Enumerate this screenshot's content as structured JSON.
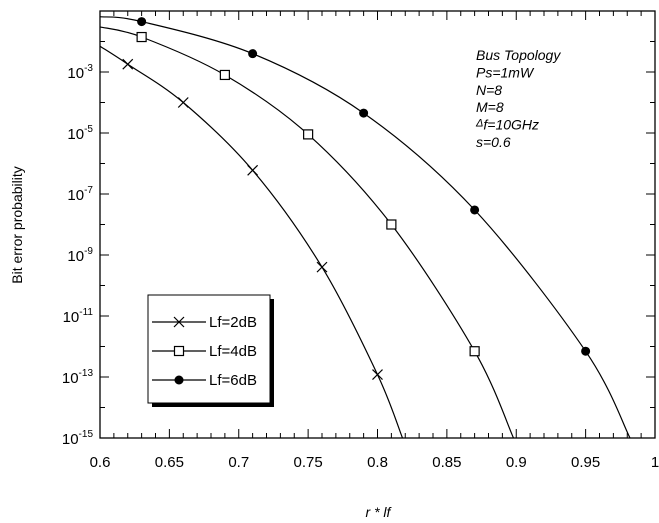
{
  "chart_data": {
    "type": "line",
    "title": "",
    "xlabel": "r * lf",
    "ylabel": "Bit error probability",
    "x_scale": "linear",
    "y_scale": "log",
    "xlim": [
      0.6,
      1.0
    ],
    "ylim": [
      1e-15,
      0.1
    ],
    "x_ticks": [
      "0.6",
      "0.65",
      "0.7",
      "0.75",
      "0.8",
      "0.85",
      "0.9",
      "0.95",
      "1"
    ],
    "y_ticks": [
      {
        "base": "10",
        "exp": "-3",
        "value": 0.001
      },
      {
        "base": "10",
        "exp": "-5",
        "value": 1e-05
      },
      {
        "base": "10",
        "exp": "-7",
        "value": 1e-07
      },
      {
        "base": "10",
        "exp": "-9",
        "value": 1e-09
      },
      {
        "base": "10",
        "exp": "-11",
        "value": 1e-11
      },
      {
        "base": "10",
        "exp": "-13",
        "value": 1e-13
      },
      {
        "base": "10",
        "exp": "-15",
        "value": 1e-15
      }
    ],
    "grid": false,
    "legend_position": "bottom-left",
    "annotation": {
      "lines": [
        {
          "prefix": "",
          "text": "Bus Topology"
        },
        {
          "prefix": "",
          "text": "Ps=1mW"
        },
        {
          "prefix": "",
          "text": "N=8"
        },
        {
          "prefix": "",
          "text": "M=8"
        },
        {
          "prefix": "Δ",
          "text": "f=10GHz"
        },
        {
          "prefix": "",
          "text": "s=0.6"
        }
      ]
    },
    "series": [
      {
        "name": "Lf=2dB",
        "marker": "x",
        "curve": [
          [
            0.6,
            0.007
          ],
          [
            0.62,
            0.0018
          ],
          [
            0.66,
            0.0001
          ],
          [
            0.71,
            6e-07
          ],
          [
            0.76,
            4e-10
          ],
          [
            0.8,
            1.2e-13
          ],
          [
            0.818,
            1e-15
          ]
        ],
        "marker_points": [
          [
            0.62,
            0.0018
          ],
          [
            0.66,
            0.0001
          ],
          [
            0.71,
            6e-07
          ],
          [
            0.76,
            4e-10
          ],
          [
            0.8,
            1.2e-13
          ]
        ]
      },
      {
        "name": "Lf=4dB",
        "marker": "square",
        "curve": [
          [
            0.6,
            0.03
          ],
          [
            0.63,
            0.014
          ],
          [
            0.69,
            0.0008
          ],
          [
            0.75,
            9e-06
          ],
          [
            0.81,
            1e-08
          ],
          [
            0.87,
            7e-13
          ],
          [
            0.898,
            1e-15
          ]
        ],
        "marker_points": [
          [
            0.63,
            0.014
          ],
          [
            0.69,
            0.0008
          ],
          [
            0.75,
            9e-06
          ],
          [
            0.81,
            1e-08
          ],
          [
            0.87,
            7e-13
          ]
        ]
      },
      {
        "name": "Lf=6dB",
        "marker": "filled-circle",
        "curve": [
          [
            0.6,
            0.065
          ],
          [
            0.63,
            0.045
          ],
          [
            0.71,
            0.004
          ],
          [
            0.79,
            4.5e-05
          ],
          [
            0.87,
            3e-08
          ],
          [
            0.95,
            7e-13
          ],
          [
            0.982,
            1e-15
          ]
        ],
        "marker_points": [
          [
            0.63,
            0.045
          ],
          [
            0.71,
            0.004
          ],
          [
            0.79,
            4.5e-05
          ],
          [
            0.87,
            3e-08
          ],
          [
            0.95,
            7e-13
          ]
        ]
      }
    ]
  }
}
